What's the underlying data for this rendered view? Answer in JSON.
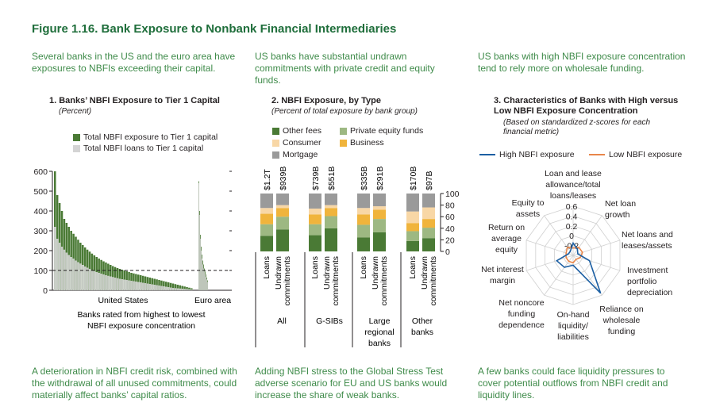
{
  "figure_title": "Figure 1.16. Bank Exposure to Nonbank Financial Intermediaries",
  "panels": {
    "p1": {
      "lead": "Several banks in the US and the euro area have exposures to NBFIs exceeding their capital.",
      "title": "1. Banks’ NBFI Exposure to Tier 1 Capital",
      "subtitle": "(Percent)",
      "footer": "A deterioration in NBFI credit risk, combined with the withdrawal of all unused commitments, could materially affect banks’ capital ratios."
    },
    "p2": {
      "lead": "US banks have substantial undrawn commitments with private credit and equity funds.",
      "title": "2. NBFI Exposure, by Type",
      "subtitle": "(Percent of total exposure by bank group)",
      "footer": "Adding NBFI stress to the Global Stress Test adverse scenario for EU and US banks would increase the share of weak banks."
    },
    "p3": {
      "lead": "US banks with high NBFI exposure concentration tend to rely more on wholesale funding.",
      "title": "3. Characteristics of Banks with High versus Low NBFI Exposure Concentration",
      "subtitle": "(Based on standardized z-scores for each financial metric)",
      "footer": "A few banks could face liquidity pressures to cover potential outflows from NBFI credit and liquidity lines."
    }
  },
  "chart_data": [
    {
      "type": "bar",
      "title": "1. Banks’ NBFI Exposure to Tier 1 Capital",
      "ylabel": "Percent",
      "ylim": [
        0,
        600
      ],
      "yticks": [
        "0",
        "100",
        "200",
        "300",
        "400",
        "500",
        "600"
      ],
      "xlabel": "Banks rated from highest to lowest NBFI exposure concentration",
      "group_labels": [
        "United States",
        "Euro area"
      ],
      "reference_line": 100,
      "legend": [
        "Total NBFI exposure to Tier 1 capital",
        "Total NBFI loans to Tier 1 capital"
      ],
      "series": [
        {
          "name": "Total NBFI exposure to Tier 1 capital",
          "group": "United States",
          "values": [
            600,
            480,
            440,
            400,
            360,
            340,
            320,
            300,
            285,
            270,
            255,
            240,
            228,
            216,
            205,
            195,
            185,
            176,
            168,
            160,
            153,
            146,
            140,
            134,
            128,
            122,
            117,
            112,
            108,
            104,
            100,
            96,
            92,
            88,
            85,
            82,
            79,
            76,
            73,
            70,
            67,
            64,
            61,
            58,
            55,
            52,
            49,
            46,
            43,
            40,
            37,
            34,
            31,
            28,
            25,
            22,
            19,
            16,
            13,
            10
          ]
        },
        {
          "name": "Total NBFI loans to Tier 1 capital",
          "group": "United States",
          "values": [
            320,
            260,
            240,
            220,
            205,
            190,
            178,
            168,
            160,
            150,
            142,
            135,
            128,
            120,
            114,
            108,
            102,
            97,
            92,
            88,
            84,
            80,
            76,
            73,
            70,
            67,
            64,
            61,
            58,
            56,
            54,
            52,
            50,
            48,
            46,
            44,
            42,
            40,
            38,
            36,
            34,
            32,
            30,
            28,
            26,
            24,
            22,
            20,
            18,
            16,
            14,
            12,
            11,
            10,
            9,
            8,
            7,
            6,
            5,
            4
          ]
        },
        {
          "name": "Total NBFI exposure to Tier 1 capital",
          "group": "Euro area",
          "values": [
            550,
            400,
            280,
            220,
            180,
            150,
            130,
            110,
            95,
            80,
            65,
            50
          ]
        },
        {
          "name": "Total NBFI loans to Tier 1 capital",
          "group": "Euro area",
          "values": [
            540,
            380,
            260,
            200,
            160,
            130,
            110,
            95,
            80,
            68,
            55,
            42
          ]
        }
      ]
    },
    {
      "type": "bar",
      "stacked": true,
      "title": "2. NBFI Exposure, by Type",
      "ylabel": "Percent of total exposure by bank group",
      "ylim": [
        0,
        100
      ],
      "yticks": [
        "0",
        "20",
        "40",
        "60",
        "80",
        "100"
      ],
      "legend": [
        "Other fees",
        "Consumer",
        "Mortgage",
        "Private equity funds",
        "Business"
      ],
      "stack_order": [
        "Other fees",
        "Private equity funds",
        "Business",
        "Consumer",
        "Mortgage"
      ],
      "bar_labels": [
        "Loans",
        "Undrawn commitments"
      ],
      "groups": [
        {
          "name": "All",
          "totals": [
            "$1.2T",
            "$939B"
          ],
          "bars": [
            [
              27,
              20,
              18,
              10,
              25
            ],
            [
              38,
              22,
              15,
              5,
              20
            ]
          ]
        },
        {
          "name": "G-SIBs",
          "totals": [
            "$739B",
            "$551B"
          ],
          "bars": [
            [
              28,
              19,
              17,
              10,
              26
            ],
            [
              40,
              21,
              14,
              5,
              20
            ]
          ]
        },
        {
          "name": "Large regional banks",
          "totals": [
            "$335B",
            "$291B"
          ],
          "bars": [
            [
              24,
              22,
              18,
              11,
              25
            ],
            [
              33,
              23,
              16,
              6,
              22
            ]
          ]
        },
        {
          "name": "Other banks",
          "totals": [
            "$170B",
            "$97B"
          ],
          "bars": [
            [
              18,
              17,
              14,
              20,
              31
            ],
            [
              23,
              18,
              15,
              20,
              24
            ]
          ]
        }
      ]
    },
    {
      "type": "radar",
      "title": "3. Characteristics of Banks with High versus Low NBFI Exposure Concentration",
      "axis_ticks": [
        "0.6",
        "0.4",
        "0.2",
        "0",
        "-0.2"
      ],
      "range": [
        -0.4,
        0.6
      ],
      "axes": [
        "Loan and lease allowance/total loans/leases",
        "Net loan growth",
        "Net loans and leases/assets",
        "Investment portfolio depreciation",
        "Reliance on wholesale funding",
        "On-hand liquidity/liabilities",
        "Net noncore funding dependence",
        "Net interest margin",
        "Return on average equity",
        "Equity to assets"
      ],
      "series": [
        {
          "name": "High NBFI exposure",
          "values": [
            -0.15,
            -0.25,
            -0.3,
            -0.05,
            0.55,
            -0.2,
            -0.1,
            -0.05,
            -0.3,
            -0.3
          ]
        },
        {
          "name": "Low NBFI exposure",
          "values": [
            -0.25,
            -0.2,
            -0.2,
            -0.25,
            -0.3,
            -0.25,
            -0.25,
            -0.25,
            -0.25,
            -0.2
          ]
        }
      ]
    }
  ],
  "colors": {
    "title_green": "#1f6e3b",
    "text_green": "#3f8b4a",
    "dark_green": "#4a7a35",
    "light_green": "#9db882",
    "gold": "#f0b43c",
    "peach": "#f8d7a6",
    "gray": "#9a9a9a",
    "light_gray": "#d4d4d4",
    "blue": "#1c5fa3",
    "orange": "#e8864a"
  }
}
